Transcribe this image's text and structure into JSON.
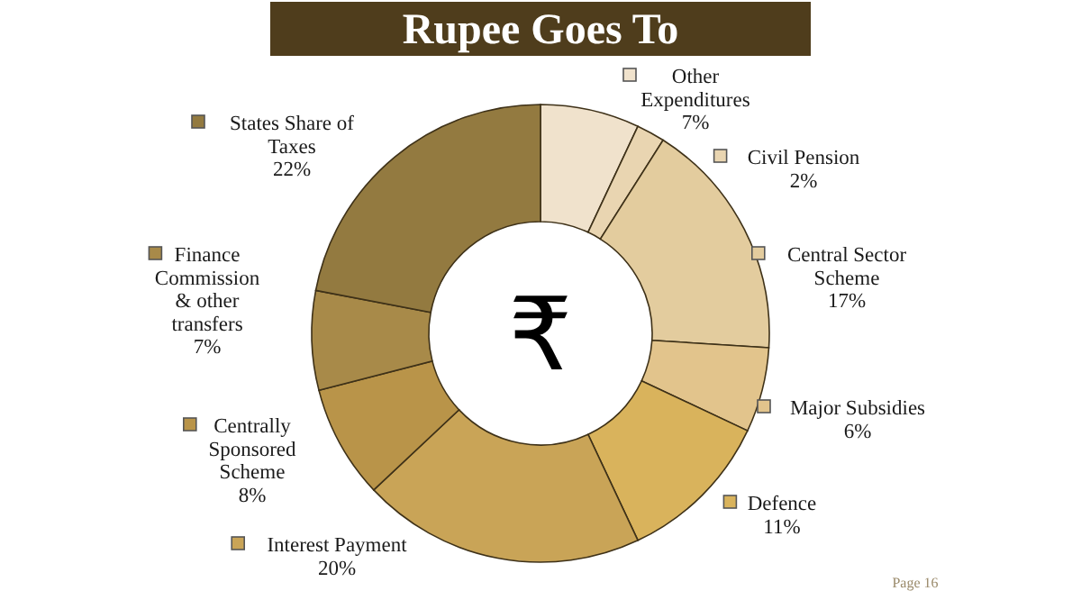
{
  "chart_data": {
    "type": "donut",
    "title": "Rupee Goes To",
    "categories": [
      "Other Expenditures",
      "Civil Pension",
      "Central Sector Scheme",
      "Major Subsidies",
      "Defence",
      "Interest Payment",
      "Centrally Sponsored Scheme",
      "Finance Commission & other transfers",
      "States Share of Taxes"
    ],
    "values": [
      7,
      2,
      17,
      6,
      11,
      20,
      8,
      7,
      22
    ],
    "colors": [
      "#f0e2cc",
      "#e9d5b1",
      "#e3cc9e",
      "#e2c48c",
      "#d9b35c",
      "#c9a457",
      "#b99449",
      "#a88a49",
      "#937a40"
    ],
    "value_labels": [
      "7%",
      "2%",
      "17%",
      "6%",
      "11%",
      "20%",
      "8%",
      "7%",
      "22%"
    ],
    "legend": "right",
    "annotations": [
      "₹",
      "Page 16"
    ]
  }
}
